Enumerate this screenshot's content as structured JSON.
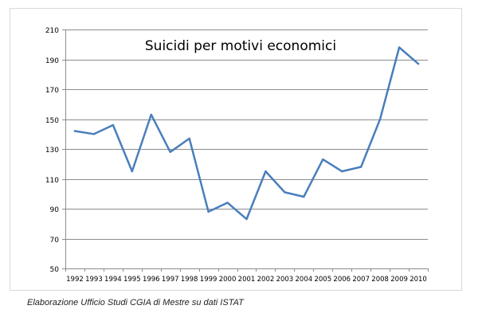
{
  "caption": "Elaborazione Ufficio Studi CGIA di Mestre su dati ISTAT",
  "chart_data": {
    "type": "line",
    "title": "Suicidi per motivi economici",
    "xlabel": "",
    "ylabel": "",
    "ylim": [
      50,
      210
    ],
    "yticks": [
      50,
      70,
      90,
      110,
      130,
      150,
      170,
      190,
      210
    ],
    "grid": true,
    "categories": [
      "1992",
      "1993",
      "1994",
      "1995",
      "1996",
      "1997",
      "1998",
      "1999",
      "2000",
      "2001",
      "2002",
      "2003",
      "2004",
      "2005",
      "2006",
      "2007",
      "2008",
      "2009",
      "2010"
    ],
    "series": [
      {
        "values": [
          142,
          140,
          146,
          115,
          153,
          128,
          137,
          88,
          94,
          83,
          115,
          101,
          98,
          123,
          115,
          118,
          150,
          198,
          187
        ]
      }
    ],
    "colors": {
      "line": "#4a7ebb",
      "grid": "#8c8c8c",
      "axis": "#8c8c8c",
      "text": "#000000"
    }
  }
}
